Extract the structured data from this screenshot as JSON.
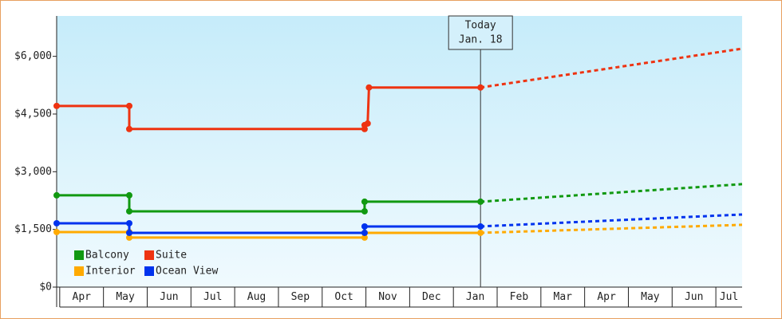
{
  "chart_data": {
    "type": "step-line",
    "ylim": [
      0,
      7050
    ],
    "yticks": [
      {
        "value": 0,
        "label": "$0"
      },
      {
        "value": 1500,
        "label": "$1,500"
      },
      {
        "value": 3000,
        "label": "$3,000"
      },
      {
        "value": 4500,
        "label": "$4,500"
      },
      {
        "value": 6000,
        "label": "$6,000"
      }
    ],
    "xlim": [
      -0.07,
      15.6
    ],
    "xticks": [
      {
        "value": 0,
        "label": "Apr"
      },
      {
        "value": 1,
        "label": "May"
      },
      {
        "value": 2,
        "label": "Jun"
      },
      {
        "value": 3,
        "label": "Jul"
      },
      {
        "value": 4,
        "label": "Aug"
      },
      {
        "value": 5,
        "label": "Sep"
      },
      {
        "value": 6,
        "label": "Oct"
      },
      {
        "value": 7,
        "label": "Nov"
      },
      {
        "value": 8,
        "label": "Dec"
      },
      {
        "value": 9,
        "label": "Jan"
      },
      {
        "value": 10,
        "label": "Feb"
      },
      {
        "value": 11,
        "label": "Mar"
      },
      {
        "value": 12,
        "label": "Apr"
      },
      {
        "value": 13,
        "label": "May"
      },
      {
        "value": 14,
        "label": "Jun"
      },
      {
        "value": 15,
        "label": "Jul"
      }
    ],
    "annotation": {
      "x": 9.62,
      "lines": [
        "Today",
        "Jan. 18"
      ]
    },
    "series": [
      {
        "name": "Balcony",
        "color": "#119911",
        "x": [
          -0.07,
          1.59,
          1.59,
          6.97,
          6.97,
          9.62
        ],
        "values": [
          2386,
          2386,
          1971,
          1971,
          2220,
          2220
        ],
        "forecast_x": [
          9.62,
          15.6
        ],
        "forecast_values": [
          2220,
          2677
        ]
      },
      {
        "name": "Suite",
        "color": "#ee3311",
        "x": [
          -0.07,
          1.59,
          1.59,
          6.97,
          6.97,
          7.04,
          7.07,
          9.62
        ],
        "values": [
          4710,
          4710,
          4110,
          4110,
          4212,
          4254,
          5190,
          5190
        ],
        "forecast_x": [
          9.62,
          15.6
        ],
        "forecast_values": [
          5190,
          6200
        ]
      },
      {
        "name": "Interior",
        "color": "#ffaa00",
        "x": [
          -0.07,
          1.59,
          1.59,
          6.97,
          6.97,
          9.62
        ],
        "values": [
          1432,
          1432,
          1287,
          1287,
          1411,
          1411
        ],
        "forecast_x": [
          9.62,
          15.6
        ],
        "forecast_values": [
          1411,
          1619
        ]
      },
      {
        "name": "Ocean View",
        "color": "#0033ee",
        "x": [
          -0.07,
          1.59,
          1.59,
          6.97,
          6.97,
          9.62
        ],
        "values": [
          1660,
          1660,
          1411,
          1411,
          1577,
          1577
        ],
        "forecast_x": [
          9.62,
          15.6
        ],
        "forecast_values": [
          1577,
          1888
        ]
      }
    ]
  }
}
